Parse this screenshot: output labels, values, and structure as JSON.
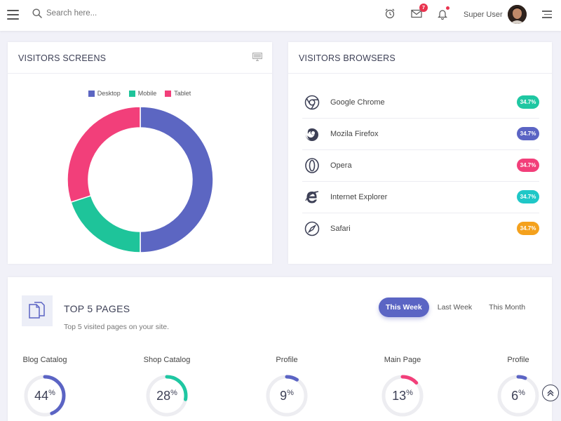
{
  "topbar": {
    "search_placeholder": "Search here...",
    "messages_count": "7",
    "username": "Super User"
  },
  "visitors_screens": {
    "title": "VISITORS SCREENS",
    "chart_data": {
      "type": "pie",
      "categories": [
        "Desktop",
        "Mobile",
        "Tablet"
      ],
      "values": [
        50,
        20,
        30
      ],
      "colors": [
        "#5c66c2",
        "#1ec49a",
        "#f23f7a"
      ],
      "legend": "top",
      "style": "donut"
    }
  },
  "visitors_browsers": {
    "title": "VISITORS BROWSERS",
    "items": [
      {
        "name": "Google Chrome",
        "value": "34.7%",
        "color": "#1fc7a2",
        "icon": "chrome-icon"
      },
      {
        "name": "Mozila Firefox",
        "value": "34.7%",
        "color": "#5b64c4",
        "icon": "firefox-icon"
      },
      {
        "name": "Opera",
        "value": "34.7%",
        "color": "#f23f7a",
        "icon": "opera-icon"
      },
      {
        "name": "Internet Explorer",
        "value": "34.7%",
        "color": "#1fc7c7",
        "icon": "internet-explorer-icon"
      },
      {
        "name": "Safari",
        "value": "34.7%",
        "color": "#f4a11d",
        "icon": "safari-icon"
      }
    ]
  },
  "top_pages": {
    "title": "TOP 5 PAGES",
    "subtitle": "Top 5 visited pages on your site.",
    "tabs": [
      "This Week",
      "Last Week",
      "This Month"
    ],
    "active_tab": "This Week",
    "pages": [
      {
        "label": "Blog Catalog",
        "value": 44,
        "color": "#5b64c4"
      },
      {
        "label": "Shop Catalog",
        "value": 28,
        "color": "#1fc7a2"
      },
      {
        "label": "Profile",
        "value": 9,
        "color": "#5b64c4"
      },
      {
        "label": "Main Page",
        "value": 13,
        "color": "#f23f7a"
      },
      {
        "label": "Profile",
        "value": 6,
        "color": "#5b64c4"
      }
    ]
  }
}
